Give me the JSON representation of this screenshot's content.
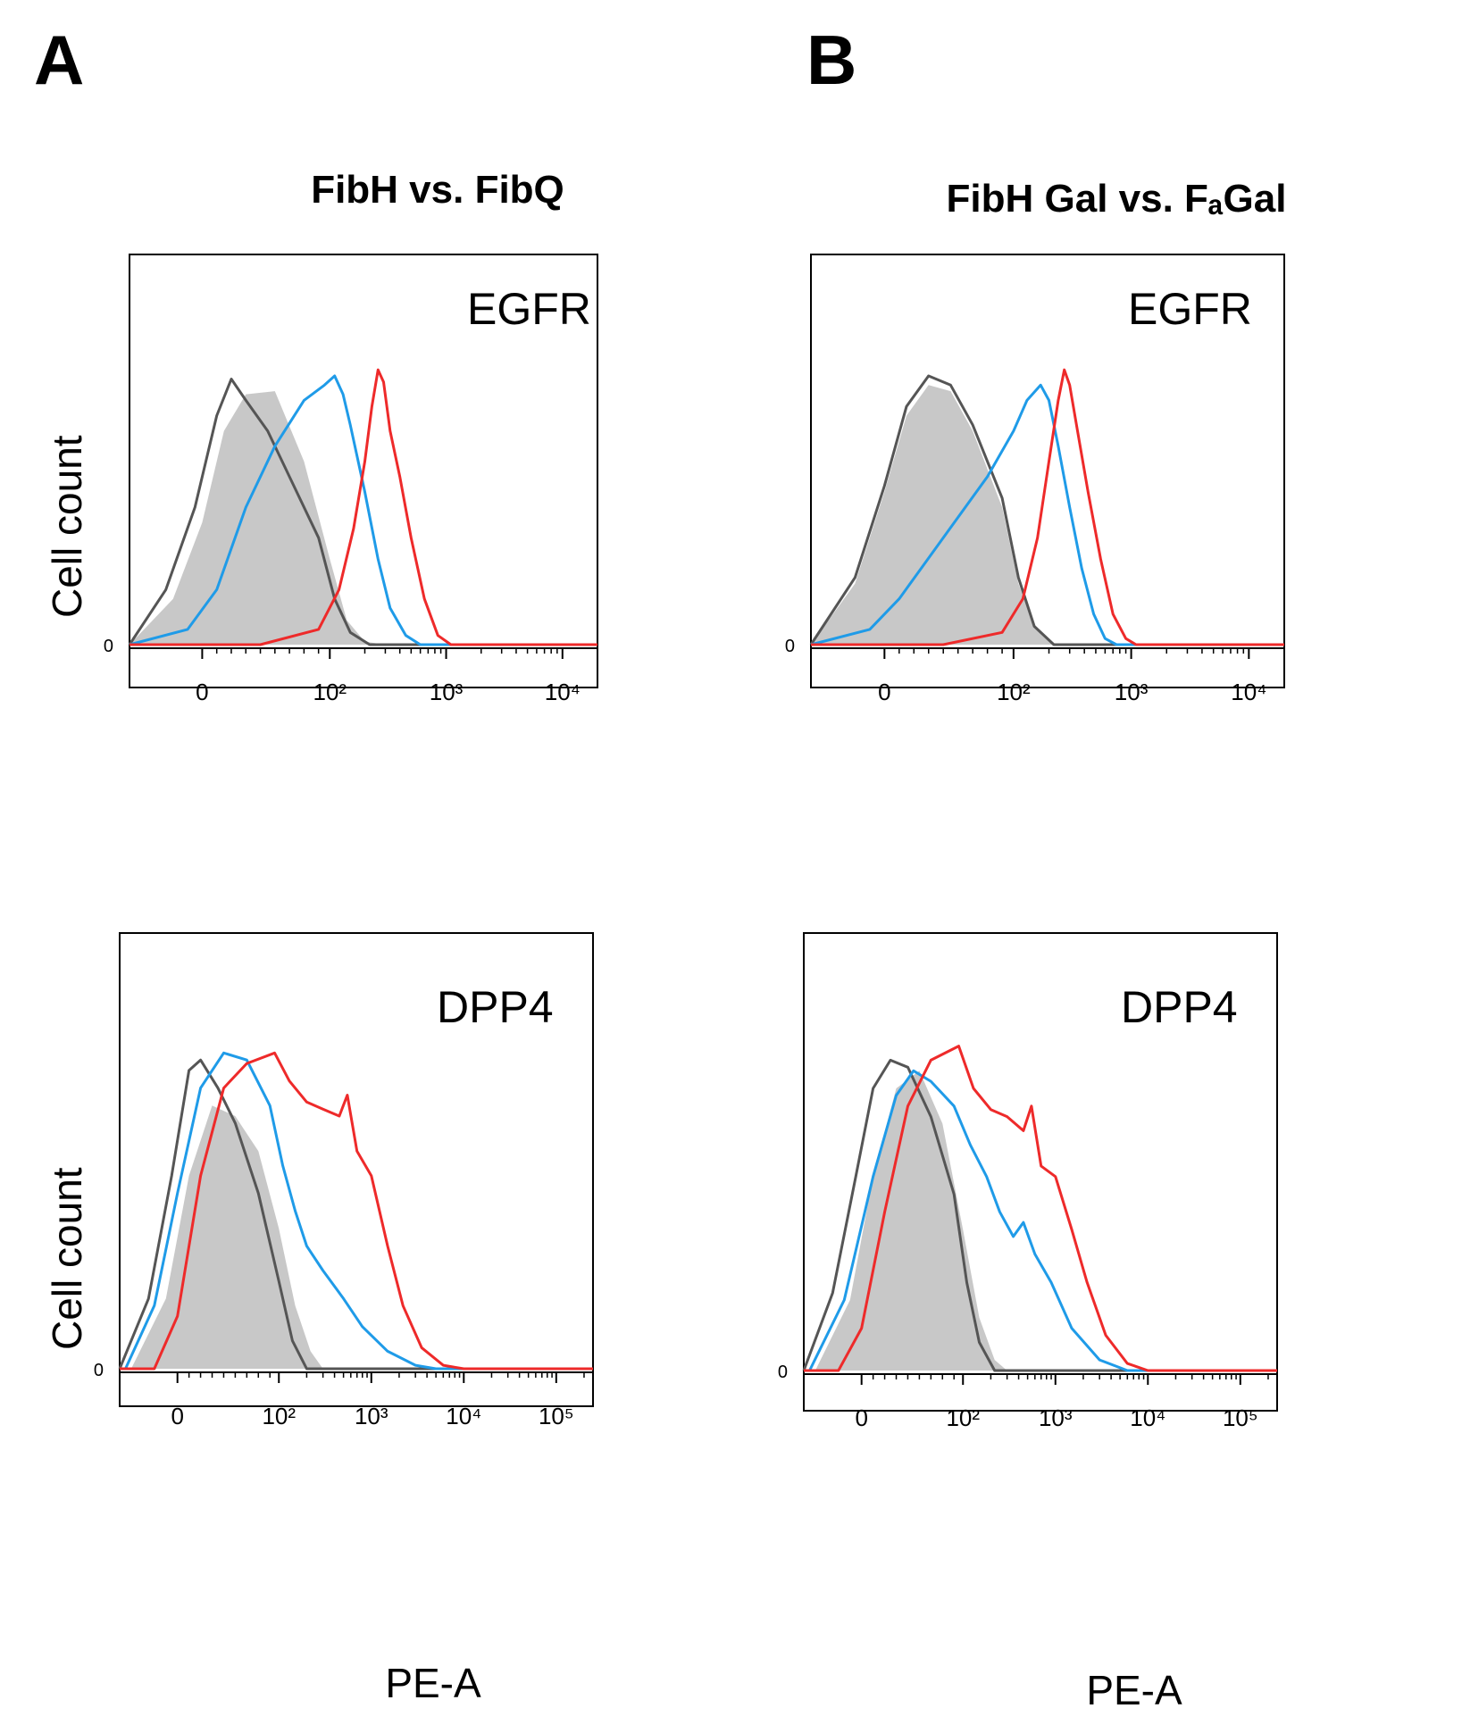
{
  "panels": [
    {
      "letter": "A",
      "title": "FibH vs. FibQ"
    },
    {
      "letter": "B",
      "title": "FibH Gal vs. FₐGal"
    }
  ],
  "colors": {
    "control_fill": "#c8c8c8",
    "isotype": "#555555",
    "blue": "#1f9be8",
    "red": "#ee2a2a"
  },
  "chart_data": [
    {
      "type": "area",
      "panel": "A",
      "column_title": "FibH vs. FibQ",
      "marker": "EGFR",
      "xlabel": "",
      "ylabel": "Cell count",
      "x_scale": "biexponential",
      "xlim": [
        -50,
        20000
      ],
      "ylim": [
        0,
        100
      ],
      "x_ticks": [
        {
          "value": 0,
          "label": "0"
        },
        {
          "value": 100,
          "label": "10²"
        },
        {
          "value": 1000,
          "label": "10³"
        },
        {
          "value": 10000,
          "label": "10⁴"
        }
      ],
      "y_ticks": [
        {
          "value": 0,
          "label": "0"
        }
      ],
      "series": [
        {
          "color_key": "control_fill",
          "style": "filled",
          "points": [
            [
              -50,
              0
            ],
            [
              -20,
              15
            ],
            [
              0,
              40
            ],
            [
              15,
              70
            ],
            [
              30,
              82
            ],
            [
              50,
              83
            ],
            [
              70,
              60
            ],
            [
              100,
              28
            ],
            [
              140,
              8
            ],
            [
              200,
              1
            ],
            [
              300,
              0
            ]
          ]
        },
        {
          "color_key": "isotype",
          "style": "line",
          "points": [
            [
              -50,
              0
            ],
            [
              -25,
              18
            ],
            [
              -5,
              45
            ],
            [
              10,
              75
            ],
            [
              20,
              87
            ],
            [
              30,
              80
            ],
            [
              45,
              70
            ],
            [
              60,
              55
            ],
            [
              80,
              35
            ],
            [
              110,
              15
            ],
            [
              150,
              4
            ],
            [
              220,
              0
            ]
          ]
        },
        {
          "color_key": "blue",
          "style": "line",
          "points": [
            [
              -50,
              0
            ],
            [
              -10,
              5
            ],
            [
              10,
              18
            ],
            [
              30,
              45
            ],
            [
              50,
              65
            ],
            [
              70,
              80
            ],
            [
              90,
              85
            ],
            [
              110,
              88
            ],
            [
              130,
              82
            ],
            [
              150,
              72
            ],
            [
              200,
              50
            ],
            [
              260,
              28
            ],
            [
              330,
              12
            ],
            [
              450,
              3
            ],
            [
              600,
              0
            ]
          ]
        },
        {
          "color_key": "red",
          "style": "line",
          "points": [
            [
              40,
              0
            ],
            [
              80,
              5
            ],
            [
              120,
              18
            ],
            [
              160,
              38
            ],
            [
              200,
              60
            ],
            [
              230,
              78
            ],
            [
              260,
              90
            ],
            [
              290,
              86
            ],
            [
              330,
              70
            ],
            [
              400,
              55
            ],
            [
              500,
              35
            ],
            [
              650,
              15
            ],
            [
              850,
              3
            ],
            [
              1100,
              0
            ]
          ]
        }
      ]
    },
    {
      "type": "area",
      "panel": "B",
      "column_title": "FibH Gal vs. FₐGal",
      "marker": "EGFR",
      "xlabel": "",
      "ylabel": "",
      "x_scale": "biexponential",
      "xlim": [
        -50,
        20000
      ],
      "ylim": [
        0,
        100
      ],
      "x_ticks": [
        {
          "value": 0,
          "label": "0"
        },
        {
          "value": 100,
          "label": "10²"
        },
        {
          "value": 1000,
          "label": "10³"
        },
        {
          "value": 10000,
          "label": "10⁴"
        }
      ],
      "y_ticks": [
        {
          "value": 0,
          "label": "0"
        }
      ],
      "series": [
        {
          "color_key": "control_fill",
          "style": "filled",
          "points": [
            [
              -50,
              0
            ],
            [
              -20,
              20
            ],
            [
              0,
              50
            ],
            [
              15,
              75
            ],
            [
              30,
              85
            ],
            [
              45,
              83
            ],
            [
              60,
              70
            ],
            [
              80,
              45
            ],
            [
              110,
              20
            ],
            [
              150,
              6
            ],
            [
              220,
              0
            ]
          ]
        },
        {
          "color_key": "isotype",
          "style": "line",
          "points": [
            [
              -50,
              0
            ],
            [
              -20,
              22
            ],
            [
              0,
              52
            ],
            [
              15,
              78
            ],
            [
              30,
              88
            ],
            [
              45,
              85
            ],
            [
              60,
              72
            ],
            [
              80,
              48
            ],
            [
              110,
              22
            ],
            [
              150,
              6
            ],
            [
              220,
              0
            ]
          ]
        },
        {
          "color_key": "blue",
          "style": "line",
          "points": [
            [
              -50,
              0
            ],
            [
              -10,
              5
            ],
            [
              10,
              15
            ],
            [
              40,
              35
            ],
            [
              70,
              55
            ],
            [
              100,
              70
            ],
            [
              130,
              80
            ],
            [
              170,
              85
            ],
            [
              200,
              80
            ],
            [
              240,
              65
            ],
            [
              300,
              45
            ],
            [
              380,
              25
            ],
            [
              480,
              10
            ],
            [
              600,
              2
            ],
            [
              750,
              0
            ]
          ]
        },
        {
          "color_key": "red",
          "style": "line",
          "points": [
            [
              40,
              0
            ],
            [
              80,
              4
            ],
            [
              120,
              15
            ],
            [
              160,
              35
            ],
            [
              200,
              60
            ],
            [
              240,
              80
            ],
            [
              270,
              90
            ],
            [
              300,
              85
            ],
            [
              350,
              70
            ],
            [
              430,
              50
            ],
            [
              550,
              28
            ],
            [
              700,
              10
            ],
            [
              900,
              2
            ],
            [
              1100,
              0
            ]
          ]
        }
      ]
    },
    {
      "type": "area",
      "panel": "A",
      "column_title": "FibH vs. FibQ",
      "marker": "DPP4",
      "xlabel": "PE-A",
      "ylabel": "Cell count",
      "x_scale": "biexponential",
      "xlim": [
        -50,
        250000
      ],
      "ylim": [
        0,
        100
      ],
      "x_ticks": [
        {
          "value": 0,
          "label": "0"
        },
        {
          "value": 100,
          "label": "10²"
        },
        {
          "value": 1000,
          "label": "10³"
        },
        {
          "value": 10000,
          "label": "10⁴"
        },
        {
          "value": 100000,
          "label": "10⁵"
        }
      ],
      "y_ticks": [
        {
          "value": 0,
          "label": "0"
        }
      ],
      "series": [
        {
          "color_key": "control_fill",
          "style": "filled",
          "points": [
            [
              -40,
              0
            ],
            [
              -10,
              20
            ],
            [
              10,
              55
            ],
            [
              30,
              75
            ],
            [
              50,
              72
            ],
            [
              70,
              62
            ],
            [
              100,
              40
            ],
            [
              150,
              18
            ],
            [
              220,
              5
            ],
            [
              300,
              0
            ]
          ]
        },
        {
          "color_key": "isotype",
          "style": "line",
          "points": [
            [
              -50,
              0
            ],
            [
              -25,
              20
            ],
            [
              -5,
              55
            ],
            [
              10,
              85
            ],
            [
              20,
              88
            ],
            [
              35,
              80
            ],
            [
              50,
              70
            ],
            [
              70,
              50
            ],
            [
              100,
              25
            ],
            [
              140,
              8
            ],
            [
              200,
              0
            ]
          ]
        },
        {
          "color_key": "blue",
          "style": "line",
          "points": [
            [
              -45,
              0
            ],
            [
              -20,
              18
            ],
            [
              0,
              50
            ],
            [
              20,
              80
            ],
            [
              40,
              90
            ],
            [
              60,
              88
            ],
            [
              80,
              75
            ],
            [
              110,
              58
            ],
            [
              150,
              45
            ],
            [
              200,
              35
            ],
            [
              300,
              28
            ],
            [
              500,
              20
            ],
            [
              800,
              12
            ],
            [
              1500,
              5
            ],
            [
              3000,
              1
            ],
            [
              5000,
              0
            ]
          ]
        },
        {
          "color_key": "red",
          "style": "line",
          "points": [
            [
              -20,
              0
            ],
            [
              0,
              15
            ],
            [
              20,
              55
            ],
            [
              40,
              80
            ],
            [
              60,
              87
            ],
            [
              90,
              90
            ],
            [
              130,
              82
            ],
            [
              200,
              76
            ],
            [
              300,
              74
            ],
            [
              450,
              72
            ],
            [
              550,
              78
            ],
            [
              700,
              62
            ],
            [
              1000,
              55
            ],
            [
              1500,
              35
            ],
            [
              2200,
              18
            ],
            [
              3500,
              6
            ],
            [
              6000,
              1
            ],
            [
              10000,
              0
            ]
          ]
        }
      ]
    },
    {
      "type": "area",
      "panel": "B",
      "column_title": "FibH Gal vs. FₐGal",
      "marker": "DPP4",
      "xlabel": "PE-A",
      "ylabel": "",
      "x_scale": "biexponential",
      "xlim": [
        -50,
        250000
      ],
      "ylim": [
        0,
        100
      ],
      "x_ticks": [
        {
          "value": 0,
          "label": "0"
        },
        {
          "value": 100,
          "label": "10²"
        },
        {
          "value": 1000,
          "label": "10³"
        },
        {
          "value": 10000,
          "label": "10⁴"
        },
        {
          "value": 100000,
          "label": "10⁵"
        }
      ],
      "y_ticks": [
        {
          "value": 0,
          "label": "0"
        }
      ],
      "series": [
        {
          "color_key": "control_fill",
          "style": "filled",
          "points": [
            [
              -40,
              0
            ],
            [
              -10,
              20
            ],
            [
              10,
              55
            ],
            [
              30,
              80
            ],
            [
              50,
              85
            ],
            [
              70,
              70
            ],
            [
              100,
              40
            ],
            [
              150,
              15
            ],
            [
              220,
              3
            ],
            [
              300,
              0
            ]
          ]
        },
        {
          "color_key": "isotype",
          "style": "line",
          "points": [
            [
              -50,
              0
            ],
            [
              -25,
              22
            ],
            [
              -5,
              55
            ],
            [
              10,
              80
            ],
            [
              25,
              88
            ],
            [
              40,
              86
            ],
            [
              60,
              72
            ],
            [
              80,
              50
            ],
            [
              110,
              25
            ],
            [
              150,
              8
            ],
            [
              220,
              0
            ]
          ]
        },
        {
          "color_key": "blue",
          "style": "line",
          "points": [
            [
              -45,
              0
            ],
            [
              -15,
              20
            ],
            [
              10,
              55
            ],
            [
              30,
              78
            ],
            [
              45,
              85
            ],
            [
              60,
              82
            ],
            [
              80,
              75
            ],
            [
              120,
              64
            ],
            [
              180,
              55
            ],
            [
              250,
              45
            ],
            [
              350,
              38
            ],
            [
              450,
              42
            ],
            [
              600,
              33
            ],
            [
              900,
              25
            ],
            [
              1500,
              12
            ],
            [
              3000,
              3
            ],
            [
              6000,
              0
            ]
          ]
        },
        {
          "color_key": "red",
          "style": "line",
          "points": [
            [
              -20,
              0
            ],
            [
              0,
              12
            ],
            [
              20,
              45
            ],
            [
              40,
              75
            ],
            [
              60,
              88
            ],
            [
              90,
              92
            ],
            [
              130,
              80
            ],
            [
              200,
              74
            ],
            [
              300,
              72
            ],
            [
              450,
              68
            ],
            [
              550,
              75
            ],
            [
              700,
              58
            ],
            [
              1000,
              55
            ],
            [
              1500,
              40
            ],
            [
              2200,
              25
            ],
            [
              3500,
              10
            ],
            [
              6000,
              2
            ],
            [
              10000,
              0
            ]
          ]
        }
      ]
    }
  ]
}
